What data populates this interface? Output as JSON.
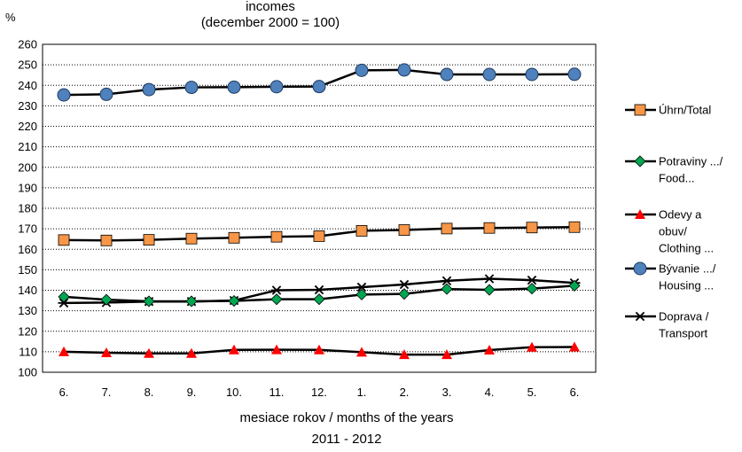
{
  "chart_data": {
    "type": "line",
    "title_lines": [
      "incomes",
      "(december 2000 = 100)"
    ],
    "y_unit": "%",
    "xlabel_lines": [
      "mesiace rokov / months of the years",
      "2011 - 2012"
    ],
    "categories": [
      "6.",
      "7.",
      "8.",
      "9.",
      "10.",
      "11.",
      "12.",
      "1.",
      "2.",
      "3.",
      "4.",
      "5.",
      "6."
    ],
    "ylim": [
      100,
      260
    ],
    "yticks": [
      100,
      110,
      120,
      130,
      140,
      150,
      160,
      170,
      180,
      190,
      200,
      210,
      220,
      230,
      240,
      250,
      260
    ],
    "grid": "horizontal dotted",
    "legend_position": "right",
    "series": [
      {
        "name": "Úhrn/Total",
        "legend_lines": [
          "Úhrn/Total"
        ],
        "marker": "square",
        "color": "#f79646",
        "values": [
          164.5,
          164.3,
          164.6,
          165.2,
          165.6,
          166.1,
          166.4,
          169.0,
          169.4,
          170.1,
          170.4,
          170.6,
          170.8
        ]
      },
      {
        "name": "Potraviny .../ Food...",
        "legend_lines": [
          "Potraviny .../",
          "Food..."
        ],
        "marker": "diamond",
        "color": "#00a651",
        "values": [
          136.8,
          135.4,
          134.6,
          134.6,
          134.8,
          135.6,
          135.6,
          137.9,
          138.2,
          140.6,
          140.2,
          140.8,
          142.2
        ]
      },
      {
        "name": "Odevy a obuv/ Clothing ...",
        "legend_lines": [
          "Odevy a",
          "obuv/",
          "Clothing ..."
        ],
        "marker": "triangle",
        "color": "#ff0000",
        "values": [
          110.0,
          109.5,
          109.2,
          109.2,
          110.9,
          111.0,
          110.9,
          109.8,
          108.6,
          108.6,
          110.8,
          112.2,
          112.3
        ]
      },
      {
        "name": "Bývanie .../ Housing ...",
        "legend_lines": [
          "Bývanie .../",
          "Housing ..."
        ],
        "marker": "circle",
        "color": "#4f81bd",
        "values": [
          235.3,
          235.6,
          237.9,
          239.0,
          239.1,
          239.3,
          239.4,
          247.3,
          247.5,
          245.3,
          245.3,
          245.3,
          245.4
        ]
      },
      {
        "name": "Doprava / Transport",
        "legend_lines": [
          "Doprava /",
          "Transport"
        ],
        "marker": "star",
        "color": "#000000",
        "values": [
          133.8,
          134.0,
          134.5,
          134.5,
          135.0,
          140.0,
          140.2,
          141.5,
          142.8,
          144.6,
          145.6,
          144.9,
          143.6
        ]
      }
    ]
  }
}
